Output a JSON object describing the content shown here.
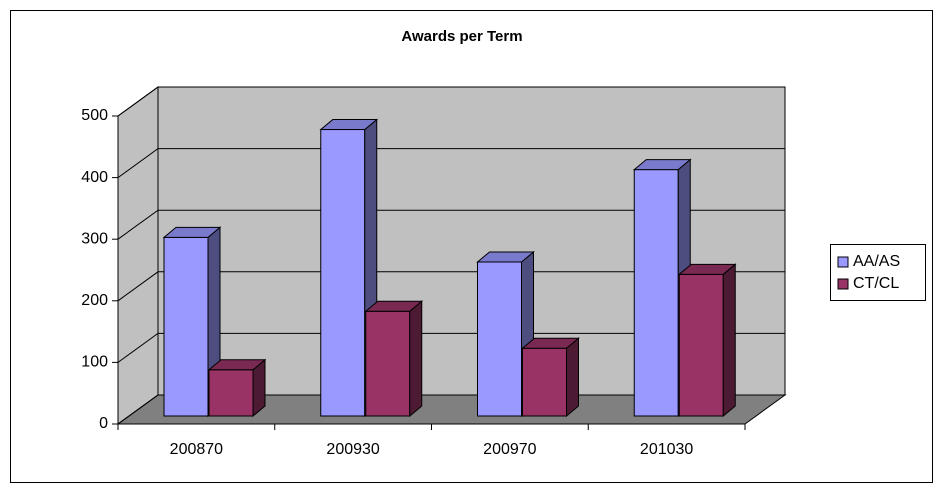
{
  "chart_data": {
    "type": "bar",
    "title": "Awards per Term",
    "categories": [
      "200870",
      "200930",
      "200970",
      "201030"
    ],
    "series": [
      {
        "name": "AA/AS",
        "color": "#9999ff",
        "values": [
          290,
          465,
          250,
          400
        ]
      },
      {
        "name": "CT/CL",
        "color": "#993366",
        "values": [
          75,
          170,
          110,
          230
        ]
      }
    ],
    "ylim": [
      0,
      500
    ],
    "yticks": [
      0,
      100,
      200,
      300,
      400,
      500
    ],
    "grid": true,
    "legend": "right"
  }
}
